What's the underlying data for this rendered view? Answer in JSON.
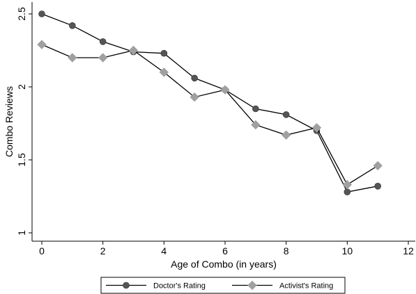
{
  "chart_data": {
    "type": "line",
    "xlabel": "Age of Combo (in years)",
    "ylabel": "Combo Reviews",
    "xlim": [
      0,
      12
    ],
    "ylim": [
      1,
      2.5
    ],
    "x_ticks": [
      0,
      2,
      4,
      6,
      8,
      10,
      12
    ],
    "x_tick_labels": [
      "0",
      "2",
      "4",
      "6",
      "8",
      "10",
      "12"
    ],
    "y_ticks": [
      1,
      1.5,
      2,
      2.5
    ],
    "y_tick_labels": [
      "1",
      "1.5",
      "2",
      "2.5"
    ],
    "grid": false,
    "legend_position": "bottom",
    "series": [
      {
        "name": "Doctor's Rating",
        "marker": "circle",
        "color": "#555555",
        "x": [
          0,
          1,
          2,
          3,
          4,
          5,
          6,
          7,
          8,
          9,
          10,
          11
        ],
        "y": [
          2.5,
          2.42,
          2.31,
          2.24,
          2.23,
          2.06,
          1.98,
          1.85,
          1.81,
          1.7,
          1.28,
          1.32
        ]
      },
      {
        "name": "Activist's Rating",
        "marker": "diamond",
        "color": "#a0a0a0",
        "x": [
          0,
          1,
          2,
          3,
          4,
          5,
          6,
          7,
          8,
          9,
          10,
          11
        ],
        "y": [
          2.29,
          2.2,
          2.2,
          2.25,
          2.1,
          1.93,
          1.98,
          1.74,
          1.67,
          1.72,
          1.33,
          1.46
        ]
      }
    ]
  }
}
